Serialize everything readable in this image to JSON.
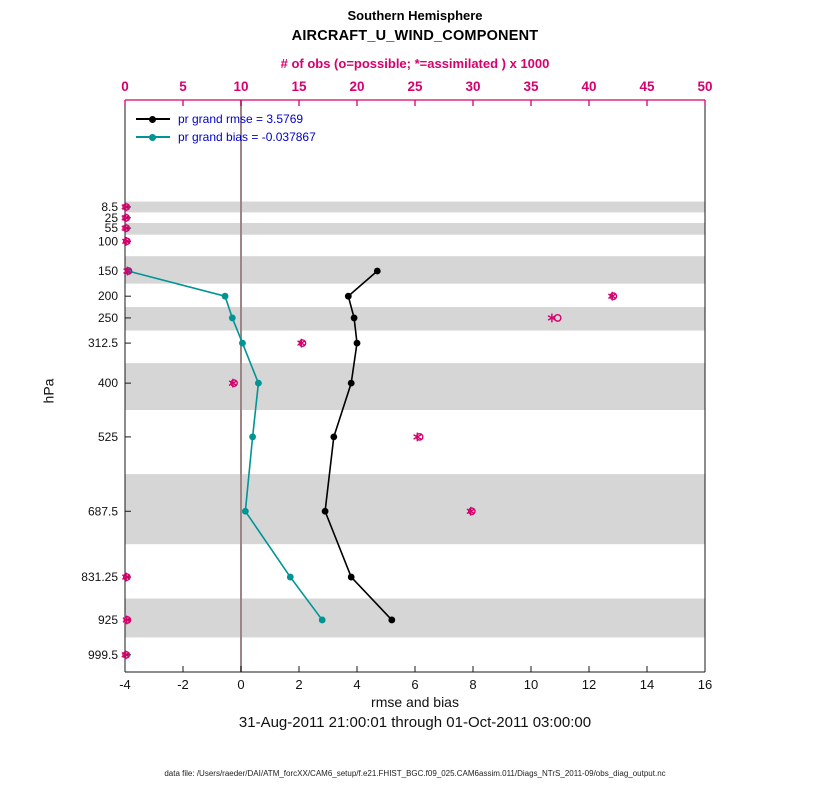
{
  "chart_data": {
    "type": "line",
    "title": "Southern Hemisphere",
    "subtitle": "AIRCRAFT_U_WIND_COMPONENT",
    "top_axis_label": "# of obs (o=possible; *=assimilated ) x 1000",
    "xlabel": "rmse and bias",
    "ylabel": "hPa",
    "timespan": "31-Aug-2011 21:00:01 through 01-Oct-2011 03:00:00",
    "datafile": "data file: /Users/raeder/DAI/ATM_forcXX/CAM6_setup/f.e21.FHIST_BGC.f09_025.CAM6assim.011/Diags_NTrS_2011-09/obs_diag_output.nc",
    "grid": false,
    "legend_position": "top-left",
    "x_bottom": {
      "min": -4,
      "max": 16,
      "ticks": [
        -4,
        -2,
        0,
        2,
        4,
        6,
        8,
        10,
        12,
        14,
        16
      ]
    },
    "x_top": {
      "min": 0,
      "max": 50,
      "ticks": [
        0,
        5,
        10,
        15,
        20,
        25,
        30,
        35,
        40,
        45,
        50
      ]
    },
    "levels": [
      8.5,
      25,
      55,
      100,
      150,
      200,
      250,
      312.5,
      400,
      525,
      687.5,
      831.25,
      925,
      999.5
    ],
    "series": [
      {
        "name": "pr grand rmse = 3.5769",
        "color": "#000000",
        "levels": [
          150,
          200,
          250,
          312.5,
          400,
          525,
          687.5,
          831.25,
          925
        ],
        "values": [
          4.7,
          3.7,
          3.9,
          4.0,
          3.8,
          3.2,
          2.9,
          3.8,
          5.2
        ]
      },
      {
        "name": "pr grand bias = -0.037867",
        "color": "#009494",
        "levels": [
          150,
          200,
          250,
          312.5,
          400,
          525,
          687.5,
          831.25,
          925
        ],
        "values": [
          -3.9,
          -0.55,
          -0.3,
          0.05,
          0.6,
          0.4,
          0.15,
          1.7,
          2.8
        ]
      }
    ],
    "obs_counts": {
      "units": "x 1000",
      "color": "#d6006e",
      "levels": [
        8.5,
        25,
        55,
        100,
        150,
        200,
        250,
        312.5,
        400,
        525,
        687.5,
        831.25,
        925,
        999.5
      ],
      "possible": [
        0.1,
        0.1,
        0.1,
        0.15,
        0.3,
        42.1,
        37.3,
        15.3,
        9.4,
        25.4,
        29.9,
        0.15,
        0.2,
        0.1
      ],
      "assimilated": [
        0.05,
        0.05,
        0.05,
        0.1,
        0.2,
        42.0,
        36.8,
        15.2,
        9.3,
        25.2,
        29.8,
        0.1,
        0.15,
        0.05
      ]
    },
    "colors": {
      "obs_magenta": "#d6006e",
      "rmse_black": "#000000",
      "bias_teal": "#009494",
      "legend_text_blue": "#0000cc",
      "band_gray": "#d6d6d6",
      "zero_line": "#9e8585",
      "axis_dark": "#1a1a1a"
    }
  }
}
